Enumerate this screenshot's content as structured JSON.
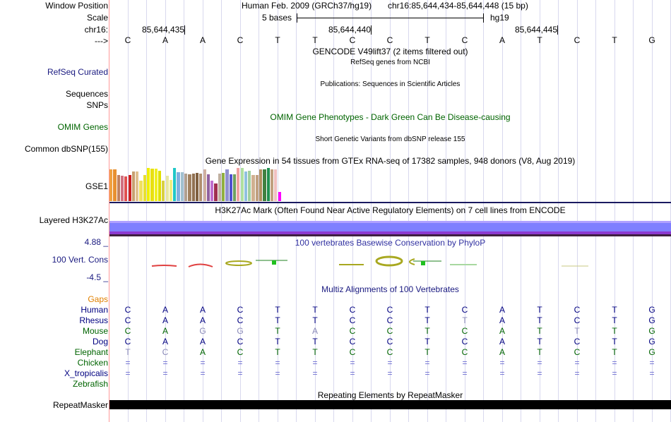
{
  "labels": {
    "window_position": "Window Position",
    "scale": "Scale",
    "chrom": "chr16:",
    "strand": "--->",
    "refseq": "RefSeq Curated",
    "sequences": "Sequences",
    "snps": "SNPs",
    "omim": "OMIM Genes",
    "dbsnp": "Common dbSNP(155)",
    "gse1": "GSE1",
    "h3k27ac": "Layered H3K27Ac",
    "cons_max": "4.88 _",
    "cons_label": "100 Vert. Cons",
    "cons_min": "-4.5 _",
    "gaps": "Gaps",
    "repeatmasker": "RepeatMasker"
  },
  "header": {
    "assembly": "Human Feb. 2009 (GRCh37/hg19)",
    "position": "chr16:85,644,434-85,644,448 (15 bp)",
    "scale_text": "5 bases",
    "scale_db": "hg19",
    "coords": [
      "85,644,435",
      "85,644,440",
      "85,644,445"
    ]
  },
  "reference_bases": [
    "C",
    "A",
    "A",
    "C",
    "T",
    "T",
    "C",
    "C",
    "T",
    "C",
    "A",
    "T",
    "C",
    "T",
    "G"
  ],
  "tracks": {
    "gencode": "GENCODE V49lift37 (2 items filtered out)",
    "refseq": "RefSeq genes from NCBI",
    "publications": "Publications: Sequences in Scientific Articles",
    "omim": "OMIM Gene Phenotypes - Dark Green Can Be Disease-causing",
    "dbsnp": "Short Genetic Variants from dbSNP release 155",
    "gtex": "Gene Expression in 54 tissues from GTEx RNA-seq of 17382 samples, 948 donors (V8, Aug 2019)",
    "h3k27ac": "H3K27Ac Mark (Often Found Near Active Regulatory Elements) on 7 cell lines from ENCODE",
    "phylop": "100 vertebrates Basewise Conservation by PhyloP",
    "multiz": "Multiz Alignments of 100 Vertebrates",
    "repeats": "Repeating Elements by RepeatMasker"
  },
  "gtex_bars": [
    {
      "v": 0.93,
      "c": "#f0a040"
    },
    {
      "v": 0.93,
      "c": "#e89030"
    },
    {
      "v": 0.78,
      "c": "#c08060"
    },
    {
      "v": 0.75,
      "c": "#d07080"
    },
    {
      "v": 0.73,
      "c": "#e05050"
    },
    {
      "v": 0.78,
      "c": "#cc2020"
    },
    {
      "v": 0.88,
      "c": "#c8a070"
    },
    {
      "v": 0.88,
      "c": "#e0c090"
    },
    {
      "v": 0.6,
      "c": "#f0e060"
    },
    {
      "v": 0.78,
      "c": "#e8e030"
    },
    {
      "v": 0.98,
      "c": "#f0f000"
    },
    {
      "v": 0.95,
      "c": "#e8e010"
    },
    {
      "v": 0.96,
      "c": "#f0f020"
    },
    {
      "v": 0.9,
      "c": "#e0e000"
    },
    {
      "v": 0.6,
      "c": "#d8d040"
    },
    {
      "v": 0.75,
      "c": "#e8e8a0"
    },
    {
      "v": 0.62,
      "c": "#f0f080"
    },
    {
      "v": 0.98,
      "c": "#20c8c8"
    },
    {
      "v": 0.85,
      "c": "#80b0e0"
    },
    {
      "v": 0.85,
      "c": "#a0c0d0"
    },
    {
      "v": 0.82,
      "c": "#b0a090"
    },
    {
      "v": 0.8,
      "c": "#a08060"
    },
    {
      "v": 0.82,
      "c": "#907050"
    },
    {
      "v": 0.83,
      "c": "#806040"
    },
    {
      "v": 0.82,
      "c": "#b09070"
    },
    {
      "v": 0.93,
      "c": "#d0b0a0"
    },
    {
      "v": 0.8,
      "c": "#9060a0"
    },
    {
      "v": 0.6,
      "c": "#c070d0"
    },
    {
      "v": 0.52,
      "c": "#a03050"
    },
    {
      "v": 0.82,
      "c": "#c0b0a0"
    },
    {
      "v": 0.83,
      "c": "#90b040"
    },
    {
      "v": 0.93,
      "c": "#9090d0"
    },
    {
      "v": 0.8,
      "c": "#5050d0"
    },
    {
      "v": 0.8,
      "c": "#70a060"
    },
    {
      "v": 0.98,
      "c": "#f0a0a0"
    },
    {
      "v": 0.98,
      "c": "#b0e0a0"
    },
    {
      "v": 0.88,
      "c": "#90c0e0"
    },
    {
      "v": 0.9,
      "c": "#a0d0a0"
    },
    {
      "v": 0.78,
      "c": "#d0b090"
    },
    {
      "v": 0.78,
      "c": "#c0a080"
    },
    {
      "v": 0.93,
      "c": "#b09060"
    },
    {
      "v": 0.93,
      "c": "#408040"
    },
    {
      "v": 0.98,
      "c": "#209050"
    },
    {
      "v": 0.93,
      "c": "#c0a080"
    },
    {
      "v": 0.93,
      "c": "#f0c0c0"
    },
    {
      "v": 0.28,
      "c": "#ff00ff"
    }
  ],
  "multiz": {
    "species": [
      {
        "name": "Human",
        "color": "#000080",
        "bases": [
          "C",
          "A",
          "A",
          "C",
          "T",
          "T",
          "C",
          "C",
          "T",
          "C",
          "A",
          "T",
          "C",
          "T",
          "G"
        ]
      },
      {
        "name": "Rhesus",
        "color": "#000080",
        "bases": [
          "C",
          "A",
          "A",
          "C",
          "T",
          "T",
          "C",
          "C",
          "T",
          "T",
          "A",
          "T",
          "C",
          "T",
          "G"
        ]
      },
      {
        "name": "Mouse",
        "color": "#006400",
        "bases": [
          "C",
          "A",
          "G",
          "G",
          "T",
          "A",
          "C",
          "C",
          "T",
          "C",
          "A",
          "T",
          "T",
          "T",
          "G"
        ]
      },
      {
        "name": "Dog",
        "color": "#000080",
        "bases": [
          "C",
          "A",
          "A",
          "C",
          "T",
          "T",
          "C",
          "C",
          "T",
          "C",
          "A",
          "T",
          "C",
          "T",
          "G"
        ]
      },
      {
        "name": "Elephant",
        "color": "#006400",
        "bases": [
          "T",
          "C",
          "A",
          "C",
          "T",
          "T",
          "C",
          "C",
          "T",
          "C",
          "A",
          "T",
          "C",
          "T",
          "G"
        ]
      },
      {
        "name": "Chicken",
        "color": "#006400",
        "bases": [
          "=",
          "=",
          "=",
          "=",
          "=",
          "=",
          "=",
          "=",
          "=",
          "=",
          "=",
          "=",
          "=",
          "=",
          "="
        ]
      },
      {
        "name": "X_tropicalis",
        "color": "#000080",
        "bases": [
          "=",
          "=",
          "=",
          "=",
          "=",
          "=",
          "=",
          "=",
          "=",
          "=",
          "=",
          "=",
          "=",
          "=",
          "="
        ]
      },
      {
        "name": "Zebrafish",
        "color": "#006400",
        "bases": []
      }
    ]
  },
  "colors": {
    "label_navy": "#1a1a80",
    "omim_green": "#006400",
    "gaps_orange": "#e08000",
    "phylop_blue": "#3030a0"
  }
}
